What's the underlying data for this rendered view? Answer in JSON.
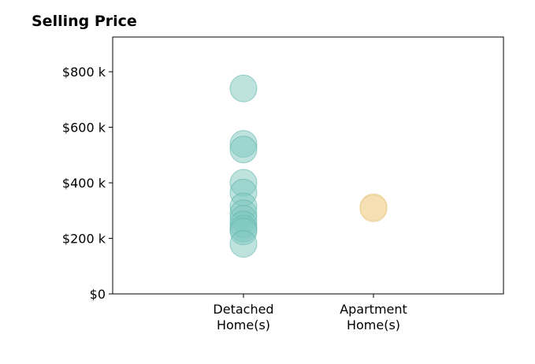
{
  "chart_data": {
    "type": "scatter",
    "title": "Selling Price",
    "categories": [
      "Detached\nHome(s)",
      "Apartment\nHome(s)"
    ],
    "y_ticks": [
      "$0",
      "$200 k",
      "$400 k",
      "$600 k",
      "$800 k"
    ],
    "ylim": [
      0,
      925000
    ],
    "grid": false,
    "colors": [
      "#7ec8bf",
      "#f2d69a"
    ],
    "series": [
      {
        "category_index": 0,
        "values": [
          740000,
          540000,
          520000,
          400000,
          365000,
          315000,
          290000,
          270000,
          250000,
          235000,
          225000,
          180000
        ]
      },
      {
        "category_index": 1,
        "values": [
          312000,
          308000
        ]
      }
    ]
  }
}
